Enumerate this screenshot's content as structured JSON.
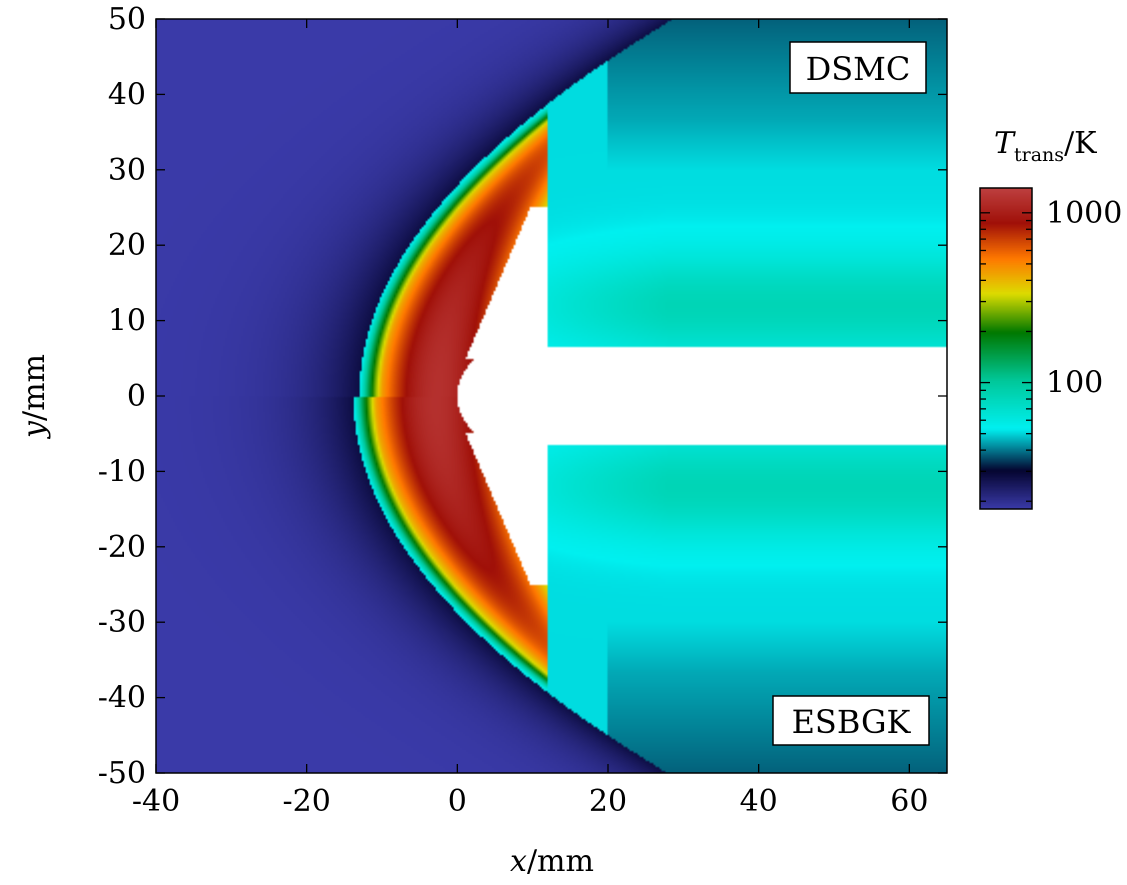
{
  "chart_data": {
    "type": "heatmap",
    "title": "",
    "xlabel_var": "x",
    "xlabel_unit": "/mm",
    "ylabel_var": "y",
    "ylabel_unit": "/mm",
    "xlim": [
      -40,
      65
    ],
    "ylim": [
      -50,
      50
    ],
    "xticks": [
      -40,
      -20,
      0,
      20,
      40,
      60
    ],
    "yticks": [
      -50,
      -40,
      -30,
      -20,
      -10,
      0,
      10,
      20,
      30,
      40,
      50
    ],
    "xtick_labels": [
      "-40",
      "-20",
      "0",
      "20",
      "40",
      "60"
    ],
    "ytick_labels": [
      "-50",
      "-40",
      "-30",
      "-20",
      "-10",
      "0",
      "10",
      "20",
      "30",
      "40",
      "50"
    ],
    "upper_half_label": "DSMC",
    "lower_half_label": "ESBGK",
    "colorbar": {
      "title_var": "T",
      "title_sub": "trans",
      "title_unit": "/K",
      "scale": "log",
      "range": [
        18,
        1400
      ],
      "tick_labels": [
        "1000",
        "100"
      ],
      "ticks": [
        1000,
        100
      ],
      "colormap": [
        "#3a3aa8",
        "#050530",
        "#00f0f0",
        "#00c89a",
        "#007800",
        "#dcdc00",
        "#ff7800",
        "#a01008",
        "#be4040"
      ]
    },
    "field": {
      "quantity": "translational temperature",
      "freestream_T": 18,
      "peak_T": 1200,
      "shock_standoff_x": -13,
      "wake_T": 60
    },
    "body": {
      "shape": "sphere-cone capsule with sting",
      "nose_x": 0,
      "shoulder_x": 10,
      "radius": 25,
      "sting_half_height": 6.5
    }
  }
}
